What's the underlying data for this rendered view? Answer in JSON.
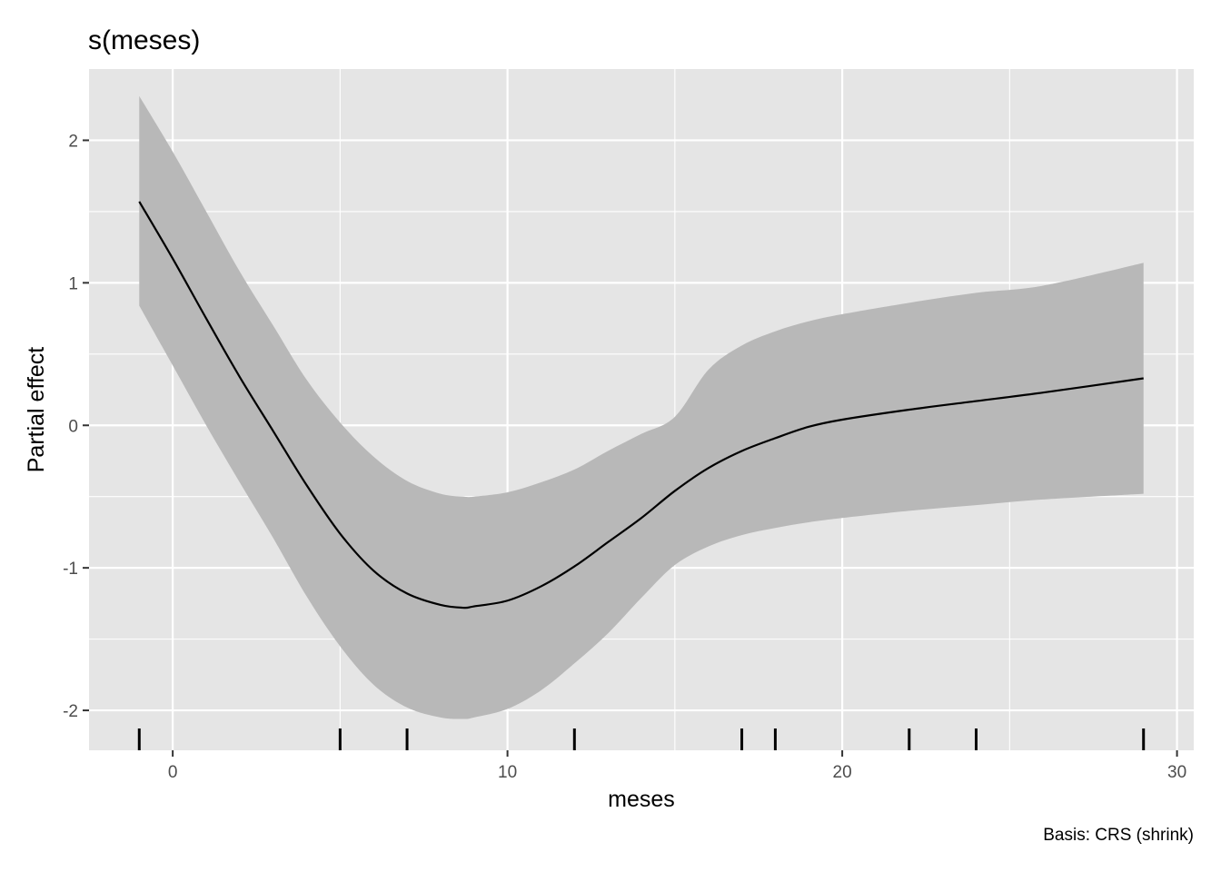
{
  "chart_data": {
    "type": "line",
    "title": "s(meses)",
    "xlabel": "meses",
    "ylabel": "Partial effect",
    "caption": "Basis: CRS (shrink)",
    "xlim": [
      -2.5,
      30.5
    ],
    "ylim": [
      -2.28,
      2.5
    ],
    "x_ticks": [
      0,
      10,
      20,
      30
    ],
    "x_tick_labels": [
      "0",
      "10",
      "20",
      "30"
    ],
    "y_ticks": [
      -2,
      -1,
      0,
      1,
      2
    ],
    "y_tick_labels": [
      "-2",
      "-1",
      "0",
      "1",
      "2"
    ],
    "grid": true,
    "series": [
      {
        "x": [
          -1,
          0,
          1,
          2,
          3,
          4,
          5,
          6,
          7,
          8,
          8.7,
          9,
          10,
          11,
          12,
          13,
          14,
          15,
          16,
          17,
          18,
          19,
          20,
          22,
          24,
          26,
          29
        ],
        "y": [
          1.57,
          1.17,
          0.75,
          0.34,
          -0.04,
          -0.42,
          -0.76,
          -1.02,
          -1.18,
          -1.26,
          -1.28,
          -1.27,
          -1.23,
          -1.13,
          -0.99,
          -0.82,
          -0.65,
          -0.46,
          -0.3,
          -0.18,
          -0.09,
          -0.01,
          0.04,
          0.11,
          0.17,
          0.23,
          0.33
        ],
        "lower": [
          0.84,
          0.42,
          0.0,
          -0.4,
          -0.79,
          -1.2,
          -1.55,
          -1.82,
          -1.98,
          -2.05,
          -2.06,
          -2.05,
          -1.99,
          -1.86,
          -1.67,
          -1.46,
          -1.21,
          -0.98,
          -0.85,
          -0.77,
          -0.72,
          -0.68,
          -0.65,
          -0.6,
          -0.56,
          -0.52,
          -0.48
        ],
        "upper": [
          2.31,
          1.92,
          1.5,
          1.08,
          0.7,
          0.32,
          0.02,
          -0.22,
          -0.39,
          -0.48,
          -0.5,
          -0.5,
          -0.47,
          -0.4,
          -0.31,
          -0.18,
          -0.06,
          0.06,
          0.39,
          0.56,
          0.66,
          0.73,
          0.78,
          0.86,
          0.93,
          0.98,
          1.14
        ]
      }
    ],
    "rug": [
      -1,
      5,
      7,
      12,
      17,
      18,
      22,
      24,
      29
    ],
    "colors": {
      "panel": "#e5e5e5",
      "grid": "#ffffff",
      "ribbon": "#b8b8b8",
      "line": "#000000"
    }
  }
}
